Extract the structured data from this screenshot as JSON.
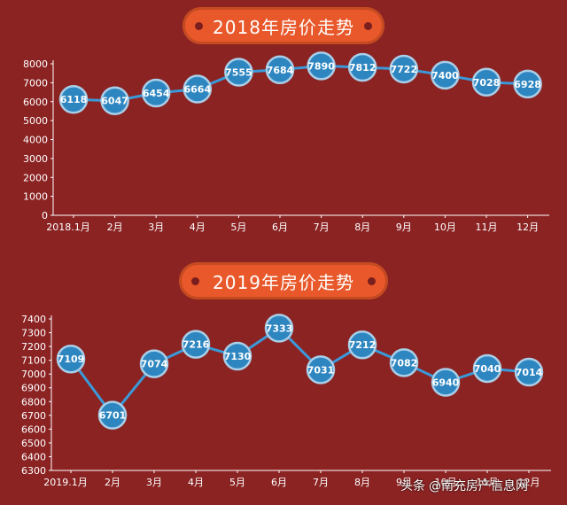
{
  "chart_data": [
    {
      "type": "line",
      "title": "2018年房价走势",
      "categories": [
        "2018.1月",
        "2月",
        "3月",
        "4月",
        "5月",
        "6月",
        "7月",
        "8月",
        "9月",
        "10月",
        "11月",
        "12月"
      ],
      "values": [
        6118,
        6047,
        6454,
        6664,
        7555,
        7684,
        7890,
        7812,
        7722,
        7400,
        7028,
        6928
      ],
      "yticks": [
        "0",
        "1000",
        "2000",
        "3000",
        "4000",
        "5000",
        "6000",
        "7000",
        "8000"
      ],
      "ylim": [
        0,
        8000
      ],
      "grid": false,
      "colors": {
        "line": "#3a9ad9",
        "marker": "#2e86c1",
        "marker_ring": "#a9cfe8",
        "label": "#ffffff"
      }
    },
    {
      "type": "line",
      "title": "2019年房价走势",
      "categories": [
        "2019.1月",
        "2月",
        "3月",
        "4月",
        "5月",
        "6月",
        "7月",
        "8月",
        "9月",
        "10月",
        "11月",
        "12月"
      ],
      "values": [
        7109,
        6701,
        7074,
        7216,
        7130,
        7333,
        7031,
        7212,
        7082,
        6940,
        7040,
        7014
      ],
      "yticks": [
        "6300",
        "6400",
        "6500",
        "6600",
        "6700",
        "6800",
        "6900",
        "7000",
        "7100",
        "7200",
        "7300",
        "7400"
      ],
      "ylim": [
        6300,
        7400
      ],
      "grid": false,
      "colors": {
        "line": "#3a9ad9",
        "marker": "#2e86c1",
        "marker_ring": "#a9cfe8",
        "label": "#ffffff"
      }
    }
  ],
  "watermark": {
    "prefix": "头条",
    "handle": "@南充房产信息网"
  }
}
